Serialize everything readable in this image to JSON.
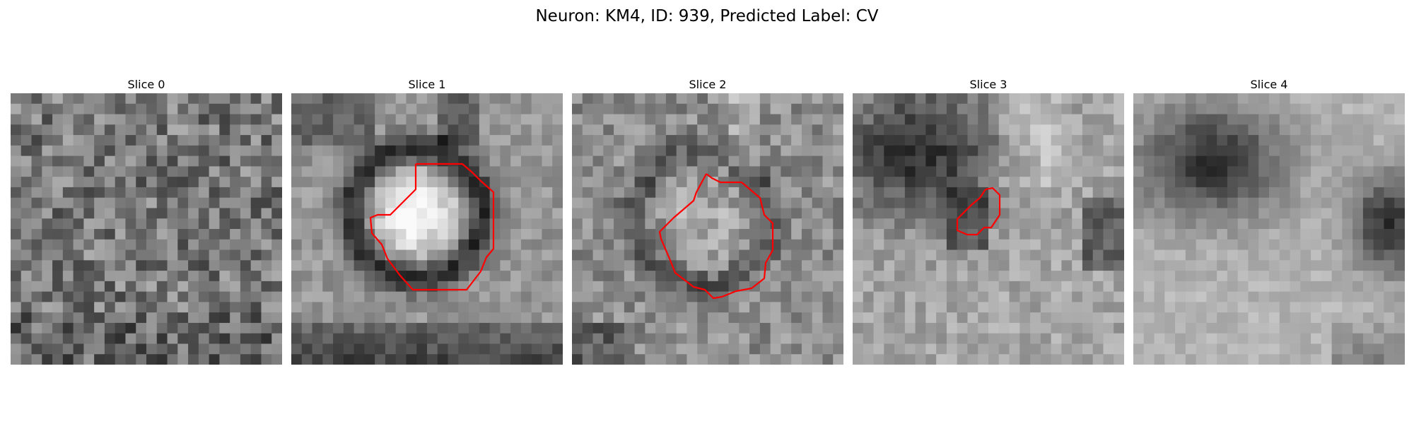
{
  "figure": {
    "title": "Neuron: KM4, ID: 939, Predicted Label: CV"
  },
  "colors": {
    "contour": "#ff0000",
    "background": "#ffffff"
  },
  "panels": [
    {
      "title": "Slice 0",
      "has_contour": false
    },
    {
      "title": "Slice 1",
      "has_contour": true
    },
    {
      "title": "Slice 2",
      "has_contour": true
    },
    {
      "title": "Slice 3",
      "has_contour": true
    },
    {
      "title": "Slice 4",
      "has_contour": false
    }
  ]
}
